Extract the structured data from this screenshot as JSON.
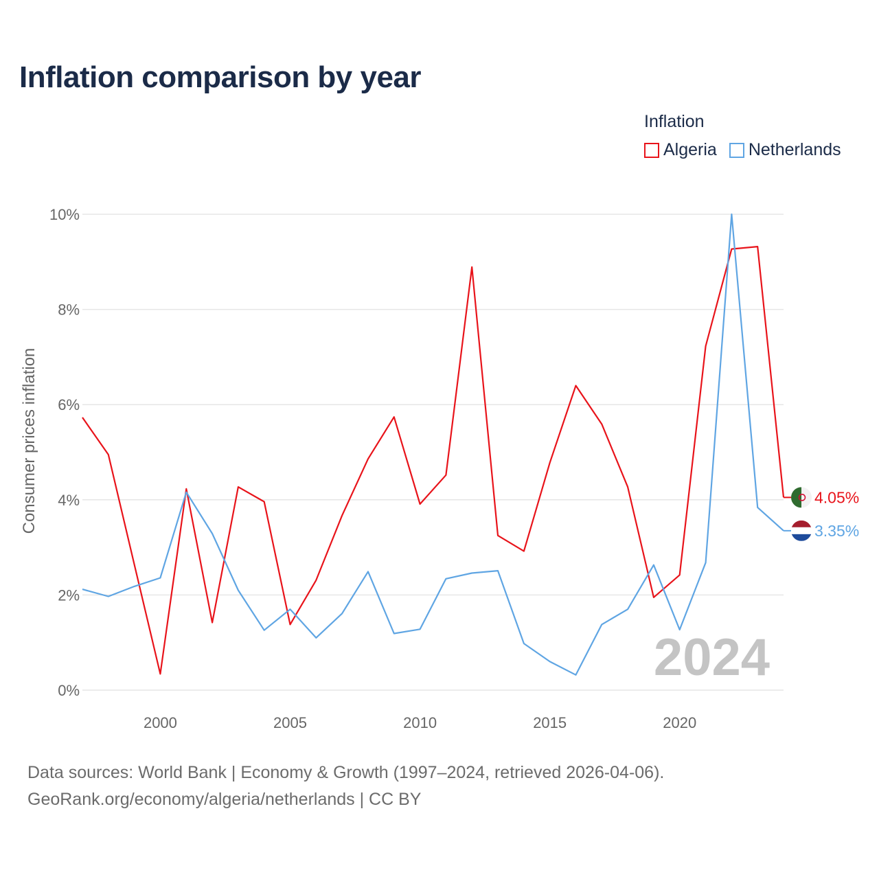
{
  "title": "Inflation comparison by year",
  "legend": {
    "title": "Inflation",
    "items": [
      {
        "label": "Algeria",
        "color": "#e8131a"
      },
      {
        "label": "Netherlands",
        "color": "#5fa5e3"
      }
    ]
  },
  "footer": {
    "line1": "Data sources: World Bank | Economy & Growth (1997–2024, retrieved 2026-04-06).",
    "line2": "GeoRank.org/economy/algeria/netherlands | CC BY"
  },
  "chart_data": {
    "type": "line",
    "title": "Inflation comparison by year",
    "xlabel": "",
    "ylabel": "Consumer prices inflation",
    "xlim": [
      1997,
      2024
    ],
    "ylim": [
      0,
      10
    ],
    "x_ticks": [
      2000,
      2005,
      2010,
      2015,
      2020
    ],
    "y_ticks": [
      0,
      2,
      4,
      6,
      8,
      10
    ],
    "y_tick_labels": [
      "0%",
      "2%",
      "4%",
      "6%",
      "8%",
      "10%"
    ],
    "year_watermark": "2024",
    "x": [
      1997,
      1998,
      1999,
      2000,
      2001,
      2002,
      2003,
      2004,
      2005,
      2006,
      2007,
      2008,
      2009,
      2010,
      2011,
      2012,
      2013,
      2014,
      2015,
      2016,
      2017,
      2018,
      2019,
      2020,
      2021,
      2022,
      2023,
      2024
    ],
    "series": [
      {
        "name": "Algeria",
        "color": "#e8131a",
        "end_label": "4.05%",
        "flag": "algeria-flag-icon",
        "values": [
          5.73,
          4.95,
          2.64,
          0.34,
          4.23,
          1.42,
          4.27,
          3.96,
          1.38,
          2.31,
          3.67,
          4.86,
          5.74,
          3.91,
          4.52,
          8.89,
          3.25,
          2.92,
          4.78,
          6.4,
          5.59,
          4.27,
          1.95,
          2.42,
          7.23,
          9.27,
          9.32,
          4.05
        ]
      },
      {
        "name": "Netherlands",
        "color": "#5fa5e3",
        "end_label": "3.35%",
        "flag": "netherlands-flag-icon",
        "values": [
          2.12,
          1.97,
          2.18,
          2.36,
          4.16,
          3.29,
          2.1,
          1.26,
          1.7,
          1.1,
          1.61,
          2.49,
          1.19,
          1.28,
          2.34,
          2.46,
          2.51,
          0.98,
          0.6,
          0.32,
          1.38,
          1.7,
          2.63,
          1.27,
          2.68,
          10.0,
          3.84,
          3.35
        ]
      }
    ]
  }
}
